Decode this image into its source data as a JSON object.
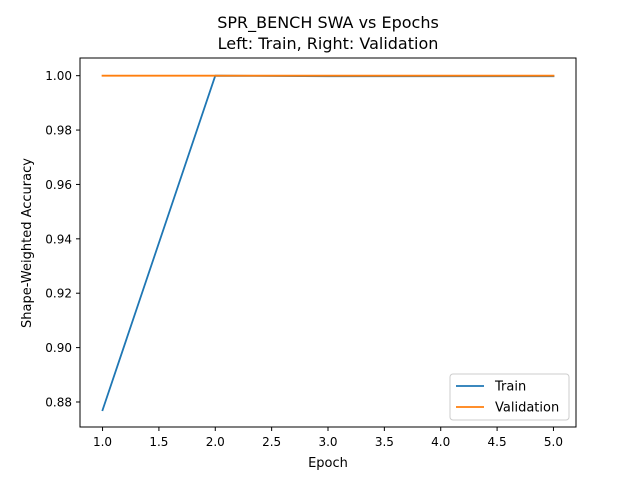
{
  "chart_data": {
    "type": "line",
    "title_line1": "SPR_BENCH SWA vs Epochs",
    "title_line2": "Left: Train, Right: Validation",
    "xlabel": "Epoch",
    "ylabel": "Shape-Weighted Accuracy",
    "xlim": [
      0.8,
      5.2
    ],
    "ylim": [
      0.8708,
      1.0065
    ],
    "x_ticks": [
      1.0,
      1.5,
      2.0,
      2.5,
      3.0,
      3.5,
      4.0,
      4.5,
      5.0
    ],
    "x_tick_labels": [
      "1.0",
      "1.5",
      "2.0",
      "2.5",
      "3.0",
      "3.5",
      "4.0",
      "4.5",
      "5.0"
    ],
    "y_ticks": [
      0.88,
      0.9,
      0.92,
      0.94,
      0.96,
      0.98,
      1.0
    ],
    "y_tick_labels": [
      "0.88",
      "0.90",
      "0.92",
      "0.94",
      "0.96",
      "0.98",
      "1.00"
    ],
    "grid": false,
    "legend_position": "lower-right",
    "series": [
      {
        "name": "Train",
        "color": "#1f77b4",
        "x": [
          1,
          2,
          3,
          4,
          5
        ],
        "y": [
          0.877,
          1.0,
          0.9998,
          0.9998,
          0.9998
        ]
      },
      {
        "name": "Validation",
        "color": "#ff7f0e",
        "x": [
          1,
          2,
          3,
          4,
          5
        ],
        "y": [
          1.0,
          1.0,
          1.0,
          1.0,
          1.0
        ]
      }
    ]
  }
}
